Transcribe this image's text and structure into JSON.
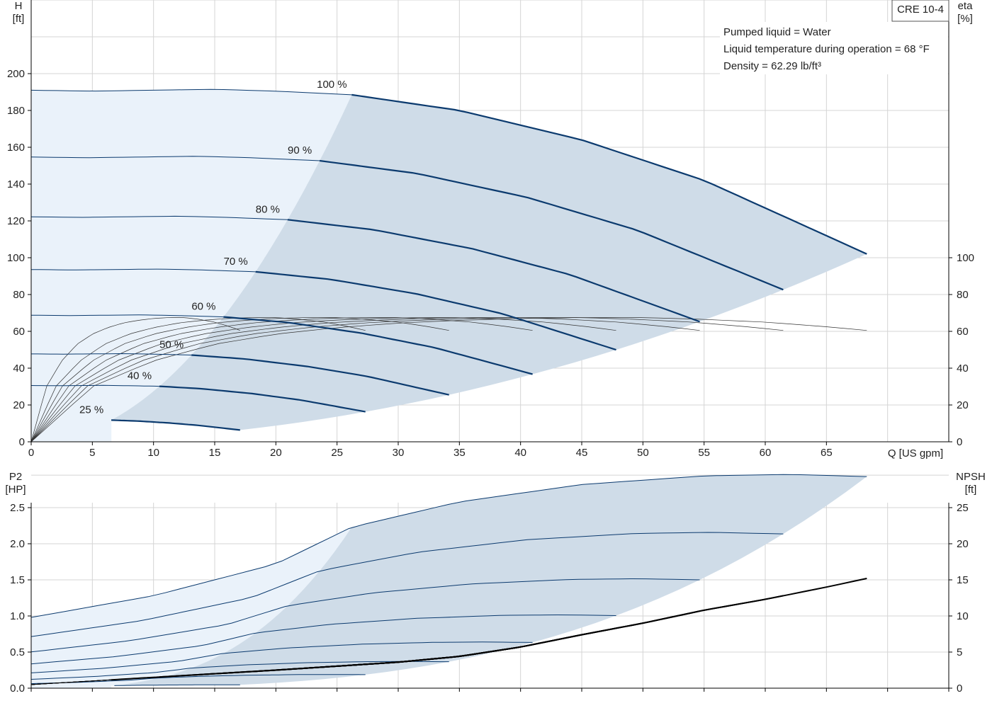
{
  "chart_data": [
    {
      "type": "line",
      "model_label": "CRE 10-4",
      "info_lines": [
        "Pumped liquid = Water",
        "Liquid temperature during operation = 68 °F",
        "Density = 62.29 lb/ft³"
      ],
      "xlabel": "Q [US gpm]",
      "xlim": [
        0,
        75
      ],
      "xticks": [
        0,
        5,
        10,
        15,
        20,
        25,
        30,
        35,
        40,
        45,
        50,
        55,
        60,
        65
      ],
      "ylabel_left": "H",
      "ylabel_left_unit": "[ft]",
      "ylim_left": [
        0,
        240
      ],
      "yticks_left": [
        0,
        20,
        40,
        60,
        80,
        100,
        120,
        140,
        160,
        180,
        200
      ],
      "ylabel_right": "eta",
      "ylabel_right_unit": "[%]",
      "ylim_right": [
        0,
        240
      ],
      "yticks_right": [
        0,
        20,
        40,
        60,
        80,
        100
      ],
      "grid": true,
      "head_curves": [
        {
          "name": "100 %",
          "speed": 1.0
        },
        {
          "name": "90 %",
          "speed": 0.9
        },
        {
          "name": "80 %",
          "speed": 0.8
        },
        {
          "name": "70 %",
          "speed": 0.7
        },
        {
          "name": "60 %",
          "speed": 0.6
        },
        {
          "name": "50 %",
          "speed": 0.5
        },
        {
          "name": "40 %",
          "speed": 0.4
        },
        {
          "name": "25 %",
          "speed": 0.25
        }
      ],
      "head_curve_100": {
        "q": [
          0,
          5,
          10,
          15,
          20,
          26.2,
          35,
          45,
          55,
          62,
          68.3
        ],
        "h": [
          191,
          190.5,
          191,
          191.5,
          190.5,
          188.5,
          180,
          164,
          142,
          121,
          102
        ]
      },
      "best_range_start_q_100": 26.2,
      "efficiency_curve_100": {
        "q": [
          0,
          5,
          10,
          15,
          20,
          25,
          30,
          35,
          40,
          45,
          50,
          55,
          60,
          65,
          68.3
        ],
        "eta": [
          0,
          30,
          44,
          53,
          58.5,
          62,
          64.5,
          66,
          67,
          67.5,
          67.5,
          66.5,
          65,
          62.5,
          60.5
        ]
      }
    },
    {
      "type": "line",
      "xlim": [
        0,
        75
      ],
      "ylabel_left": "P2",
      "ylabel_left_unit": "[HP]",
      "ylim_left": [
        0,
        3
      ],
      "yticks_left": [
        0.0,
        0.5,
        1.0,
        1.5,
        2.0,
        2.5
      ],
      "ytick_labels_left": [
        "0.0",
        "0.5",
        "1.0",
        "1.5",
        "2.0",
        "2.5"
      ],
      "ylabel_right": "NPSH",
      "ylabel_right_unit": "[ft]",
      "ylim_right": [
        0,
        30
      ],
      "yticks_right": [
        0,
        5,
        10,
        15,
        20,
        25
      ],
      "grid": true,
      "power_curve_100": {
        "q": [
          0,
          10,
          20,
          26.2,
          35,
          45,
          55,
          62,
          68.3
        ],
        "p2": [
          0.98,
          1.28,
          1.72,
          2.23,
          2.58,
          2.82,
          2.94,
          2.96,
          2.93
        ]
      },
      "npsh_curve": {
        "q": [
          0,
          20,
          30,
          35,
          40,
          45,
          50,
          55,
          60,
          65,
          68.3
        ],
        "npsh": [
          0.5,
          2.5,
          3.6,
          4.4,
          5.7,
          7.4,
          9.0,
          10.8,
          12.3,
          14.0,
          15.2
        ]
      }
    }
  ]
}
